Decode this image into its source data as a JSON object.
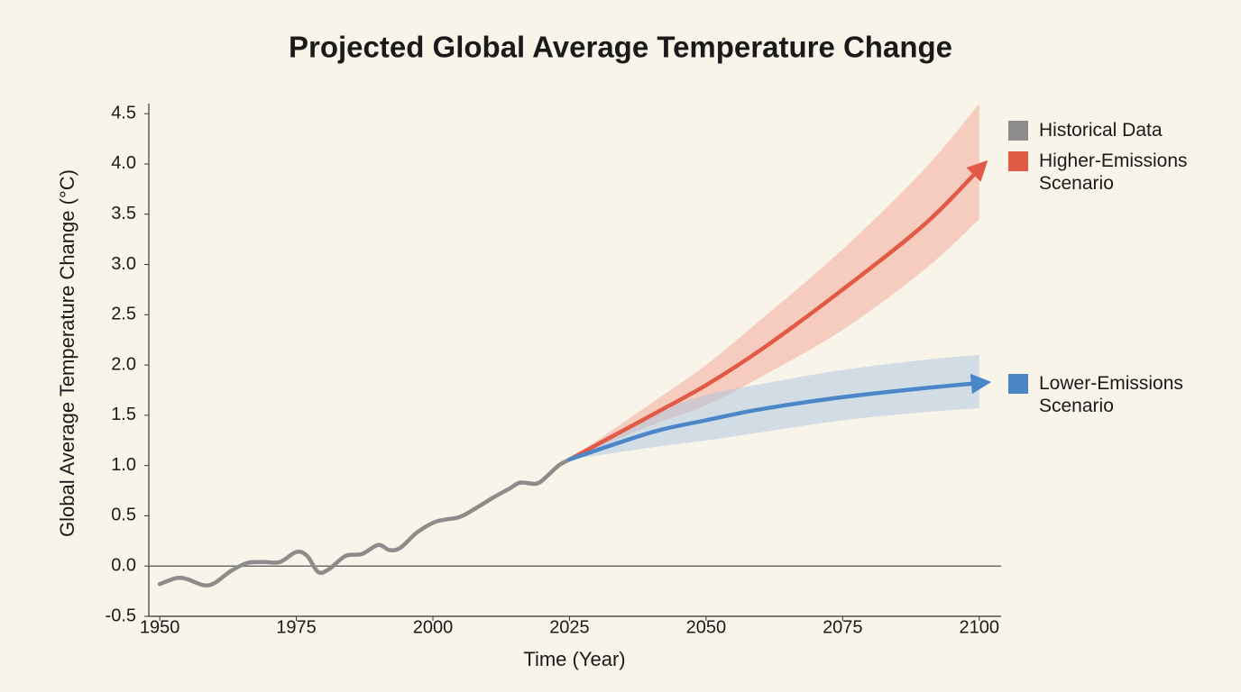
{
  "chart_data": {
    "type": "line",
    "title": "Projected Global Average Temperature Change",
    "x_label": "Time (Year)",
    "y_label": "Global Average Temperature Change (°C)",
    "xlim": [
      1948,
      2104
    ],
    "ylim": [
      -0.5,
      4.6
    ],
    "xticks": [
      1950,
      1975,
      2000,
      2025,
      2050,
      2075,
      2100
    ],
    "yticks": [
      -0.5,
      {
        "value": 0,
        "label": "0.0"
      },
      0.5,
      {
        "value": 1,
        "label": "1.0"
      },
      1.5,
      {
        "value": 2,
        "label": "2.0"
      },
      2.5,
      {
        "value": 3,
        "label": "3.0"
      },
      3.5,
      {
        "value": 4,
        "label": "4.0"
      },
      4.5
    ],
    "zero_line": true,
    "series": [
      {
        "name": "Historical Data",
        "color": "#8c8c8a",
        "x": [
          1950,
          1953,
          1955,
          1958,
          1960,
          1963,
          1966,
          1969,
          1972,
          1975,
          1977,
          1979,
          1981,
          1984,
          1987,
          1990,
          1992,
          1994,
          1997,
          2000,
          2002,
          2005,
          2008,
          2011,
          2014,
          2016,
          2019,
          2021,
          2023,
          2025
        ],
        "values": [
          -0.18,
          -0.12,
          -0.13,
          -0.19,
          -0.17,
          -0.05,
          0.03,
          0.04,
          0.04,
          0.14,
          0.1,
          -0.06,
          -0.03,
          0.1,
          0.12,
          0.21,
          0.16,
          0.18,
          0.33,
          0.43,
          0.46,
          0.49,
          0.58,
          0.68,
          0.77,
          0.83,
          0.82,
          0.9,
          1.0,
          1.06
        ]
      },
      {
        "name": "Higher-Emissions Scenario",
        "color": "#e05a45",
        "band_color": "#f4a392",
        "x": [
          2025,
          2040,
          2050,
          2060,
          2075,
          2090,
          2100
        ],
        "values": [
          1.06,
          1.5,
          1.8,
          2.15,
          2.75,
          3.4,
          3.95
        ],
        "band_lower": [
          1.06,
          1.4,
          1.6,
          1.88,
          2.35,
          2.95,
          3.45
        ],
        "band_upper": [
          1.06,
          1.62,
          2.0,
          2.45,
          3.15,
          3.95,
          4.6
        ]
      },
      {
        "name": "Lower-Emissions Scenario",
        "color": "#4a86c8",
        "band_color": "#a9c4df",
        "x": [
          2025,
          2040,
          2050,
          2060,
          2075,
          2090,
          2100
        ],
        "values": [
          1.06,
          1.33,
          1.45,
          1.56,
          1.68,
          1.77,
          1.82
        ],
        "band_lower": [
          1.06,
          1.18,
          1.25,
          1.33,
          1.45,
          1.53,
          1.57
        ],
        "band_upper": [
          1.06,
          1.5,
          1.7,
          1.81,
          1.95,
          2.05,
          2.1
        ]
      }
    ]
  }
}
